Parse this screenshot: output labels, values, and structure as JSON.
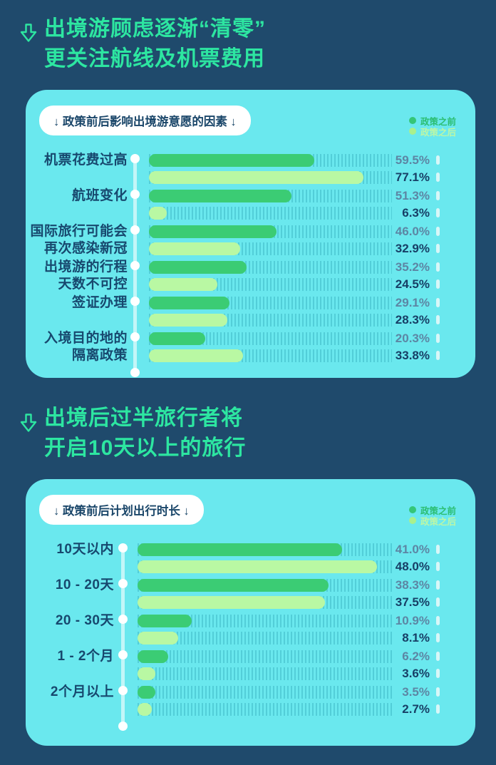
{
  "page": {
    "background": "#1F4A6C",
    "card_color": "#6AE8EE"
  },
  "colors": {
    "title_green": "#2DE6A1",
    "bar_before": "#3BCC74",
    "bar_after": "#B9F8A3",
    "label_navy": "#17486E",
    "value_muted": "#5C86A4",
    "value_dark": "#173F66"
  },
  "section1": {
    "title": "出境游顾虑逐渐“清零”\n更关注航线及机票费用"
  },
  "section2": {
    "title": "出境后过半旅行者将\n开启10天以上的旅行"
  },
  "legend": {
    "before": "政策之前",
    "after": "政策之后"
  },
  "chart1": {
    "pill": "↓ 政策前后影响出境游意愿的因素 ↓",
    "rows": [
      {
        "label": "机票花费过高",
        "before": "59.5%",
        "after": "77.1%"
      },
      {
        "label": "航班变化",
        "before": "51.3%",
        "after": "6.3%"
      },
      {
        "label": "国际旅行可能会\n再次感染新冠",
        "before": "46.0%",
        "after": "32.9%"
      },
      {
        "label": "出境游的行程\n天数不可控",
        "before": "35.2%",
        "after": "24.5%"
      },
      {
        "label": "签证办理",
        "before": "29.1%",
        "after": "28.3%"
      },
      {
        "label": "入境目的地的\n隔离政策",
        "before": "20.3%",
        "after": "33.8%"
      }
    ]
  },
  "chart2": {
    "pill": "↓ 政策前后计划出行时长 ↓",
    "rows": [
      {
        "label": "10天以内",
        "before": "41.0%",
        "after": "48.0%"
      },
      {
        "label": "10 - 20天",
        "before": "38.3%",
        "after": "37.5%"
      },
      {
        "label": "20 - 30天",
        "before": "10.9%",
        "after": "8.1%"
      },
      {
        "label": "1 - 2个月",
        "before": "6.2%",
        "after": "3.6%"
      },
      {
        "label": "2个月以上",
        "before": "3.5%",
        "after": "2.7%"
      }
    ]
  },
  "chart_data": [
    {
      "type": "bar",
      "orientation": "horizontal",
      "title": "政策前后影响出境游意愿的因素",
      "unit": "%",
      "xlim": [
        0,
        87
      ],
      "grid": "hatched-track",
      "legend_position": "top-right",
      "categories": [
        "机票花费过高",
        "航班变化",
        "国际旅行可能会再次感染新冠",
        "出境游的行程天数不可控",
        "签证办理",
        "入境目的地的隔离政策"
      ],
      "series": [
        {
          "name": "政策之前",
          "color": "#3BCC74",
          "values": [
            59.5,
            51.3,
            46.0,
            35.2,
            29.1,
            20.3
          ]
        },
        {
          "name": "政策之后",
          "color": "#B9F8A3",
          "values": [
            77.1,
            6.3,
            32.9,
            24.5,
            28.3,
            33.8
          ]
        }
      ]
    },
    {
      "type": "bar",
      "orientation": "horizontal",
      "title": "政策前后计划出行时长",
      "unit": "%",
      "xlim": [
        0,
        51
      ],
      "grid": "hatched-track",
      "legend_position": "top-right",
      "categories": [
        "10天以内",
        "10 - 20天",
        "20 - 30天",
        "1 - 2个月",
        "2个月以上"
      ],
      "series": [
        {
          "name": "政策之前",
          "color": "#3BCC74",
          "values": [
            41.0,
            38.3,
            10.9,
            6.2,
            3.5
          ]
        },
        {
          "name": "政策之后",
          "color": "#B9F8A3",
          "values": [
            48.0,
            37.5,
            8.1,
            3.6,
            2.7
          ]
        }
      ]
    }
  ]
}
